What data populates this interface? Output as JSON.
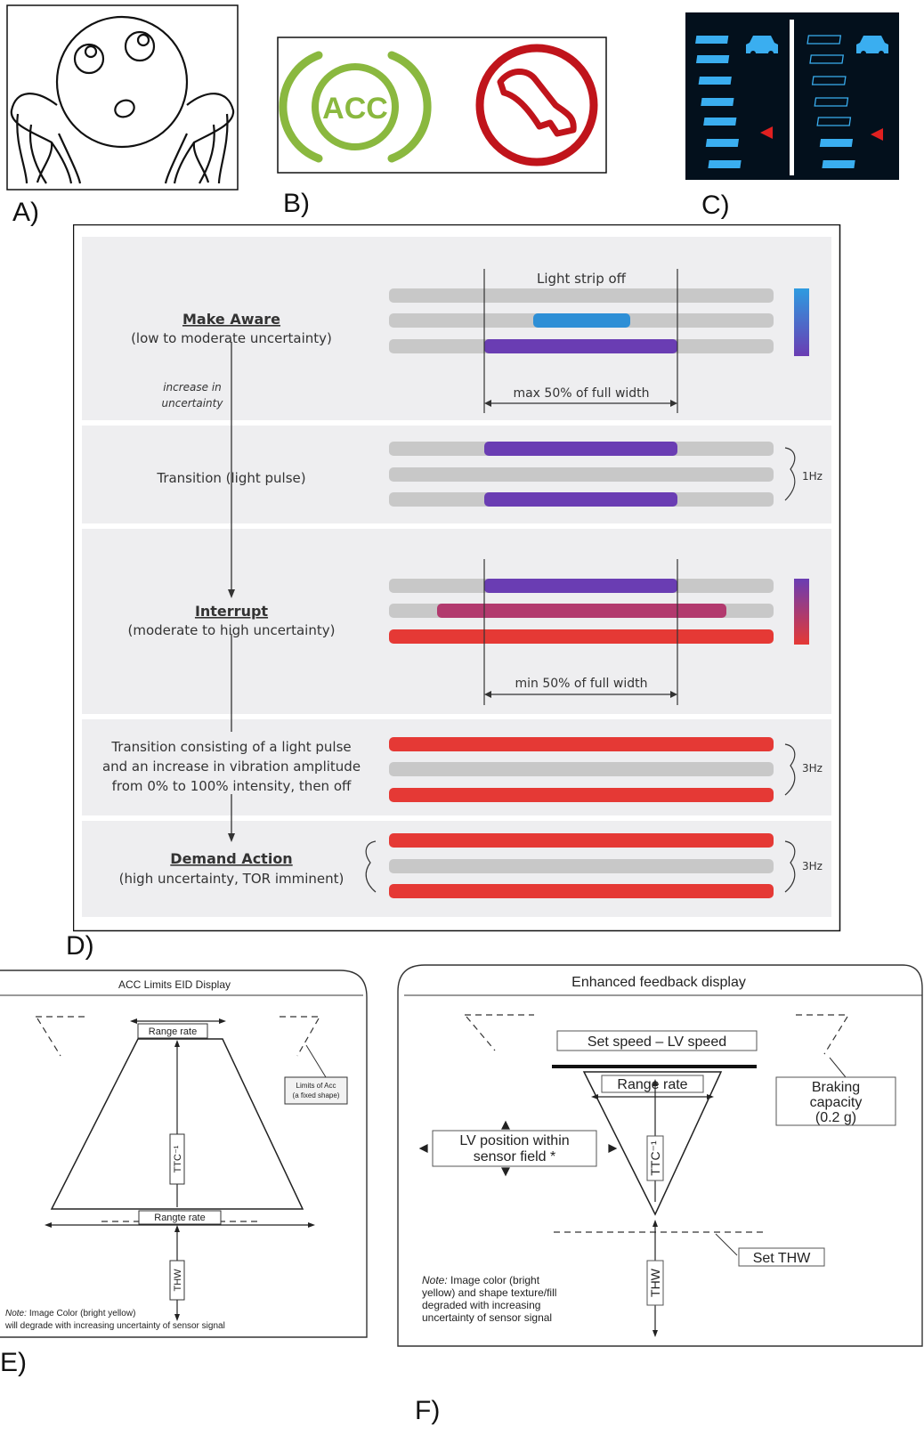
{
  "labels": {
    "a": "A)",
    "b": "B)",
    "c": "C)",
    "d": "D)",
    "e": "E)",
    "f": "F)"
  },
  "panel_b": {
    "acc_text": "ACC",
    "acc_color": "#8ab83f",
    "warning_color": "#c0141b"
  },
  "panel_c": {
    "background": "#03101c",
    "bar_color": "#3aaef0",
    "marker_color": "#e02020"
  },
  "panel_d": {
    "rows": [
      {
        "title": "Make Aware",
        "subtitle": "(low to moderate uncertainty)"
      },
      {
        "text": "Transition (light pulse)"
      },
      {
        "title": "Interrupt",
        "subtitle": "(moderate to high uncertainty)"
      },
      {
        "lines": [
          "Transition consisting of a light pulse",
          "and an increase in vibration amplitude",
          "from 0% to 100% intensity, then off"
        ]
      },
      {
        "title": "Demand Action",
        "subtitle": "(high uncertainty, TOR imminent)"
      }
    ],
    "arrow_note": [
      "increase in",
      "uncertainty"
    ],
    "light_strip_off": "Light strip off",
    "max_width_label": "max 50% of full width",
    "min_width_label": "min 50% of full width",
    "freq_1": "1Hz",
    "freq_2": "3Hz",
    "freq_3": "3Hz",
    "colors": {
      "gray": "#c8c8c8",
      "blue": "#2e8fd6",
      "purple": "#6a3db3",
      "magenta": "#b23a6e",
      "red": "#e53935",
      "row_bg": "#eeeef0"
    }
  },
  "panel_e": {
    "title": "ACC Limits EID Display",
    "range_rate_top": "Range rate",
    "limits_box": [
      "Limits of Acc",
      "(a fixed shape)"
    ],
    "ttc": "TTC⁻¹",
    "range_rate_bottom": "Rangte rate",
    "thw": "THW",
    "note_label": "Note:",
    "note_line1": "Image Color (bright yellow)",
    "note_line2": "will degrade with increasing uncertainty of sensor signal"
  },
  "panel_f": {
    "title": "Enhanced feedback display",
    "set_speed": "Set speed – LV speed",
    "range_rate": "Range rate",
    "braking": [
      "Braking",
      "capacity",
      "(0.2 g)"
    ],
    "lv_position": [
      "LV position within",
      "sensor field *"
    ],
    "ttc": "TTC⁻¹",
    "set_thw": "Set THW",
    "thw": "THW",
    "note_label": "Note:",
    "note_lines": [
      " Image color (bright",
      "yellow) and shape texture/fill",
      "degraded with increasing",
      "uncertainty of sensor signal"
    ]
  }
}
